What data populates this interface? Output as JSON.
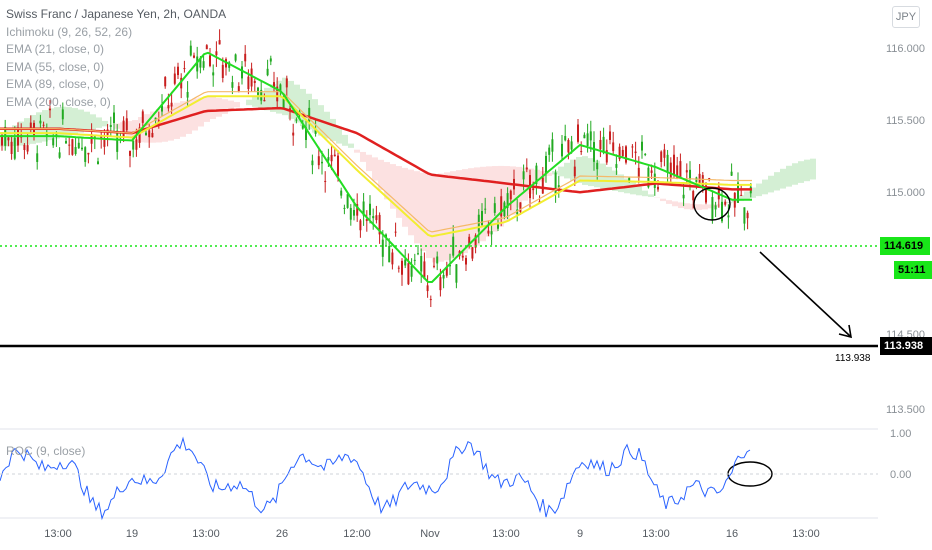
{
  "legend": {
    "title": "Swiss Franc / Japanese Yen, 2h, OANDA",
    "indicators": [
      "Ichimoku (9, 26, 52, 26)",
      "EMA (21, close, 0)",
      "EMA (55, close, 0)",
      "EMA (89, close, 0)",
      "EMA (200, close, 0)"
    ]
  },
  "roc_label": "ROC (9, close)",
  "currency_badge": "JPY",
  "price_axis_labels": [
    "116.000",
    "115.500",
    "115.000",
    "114.500",
    "113.500"
  ],
  "roc_axis_labels": [
    "1.00",
    "0.00"
  ],
  "time_axis_labels": [
    "13:00",
    "19",
    "13:00",
    "26",
    "12:00",
    "Nov",
    "13:00",
    "9",
    "13:00",
    "16",
    "13:00"
  ],
  "current_price_tag": "114.619",
  "countdown_tag": "51:11",
  "level_tag": "113.938",
  "level_label": "113.938",
  "colors": {
    "ema21": "#22dd22",
    "ema55": "#f2ee30",
    "ema89": "#f5b969",
    "ema200": "#e02020",
    "bull_candle": "#22aa22",
    "bear_candle": "#c81e1e",
    "cloud_bull": "#cdeccd",
    "cloud_bear": "#fbdcdc",
    "roc_line": "#2962ff",
    "current_price": "#19e619",
    "level_line": "#000000"
  },
  "chart_data": {
    "type": "line",
    "title": "Swiss Franc / Japanese Yen, 2h, OANDA",
    "y_axis": {
      "range": [
        113.3,
        116.2
      ]
    },
    "x_categories": [
      "13:00",
      "19",
      "13:00",
      "26",
      "12:00",
      "Nov",
      "13:00",
      "9",
      "13:00",
      "16",
      "13:00"
    ],
    "series": [
      {
        "name": "EMA (21, close, 0)",
        "x": [
          "13:00",
          "19",
          "13:00",
          "26",
          "12:00",
          "Nov",
          "13:00",
          "9",
          "13:00",
          "16"
        ],
        "values": [
          115.28,
          115.25,
          115.85,
          115.58,
          114.8,
          114.28,
          114.8,
          115.22,
          115.07,
          114.85
        ]
      },
      {
        "name": "EMA (55, close, 0)",
        "x": [
          "13:00",
          "19",
          "13:00",
          "26",
          "12:00",
          "Nov",
          "13:00",
          "9",
          "13:00",
          "16"
        ],
        "values": [
          115.3,
          115.27,
          115.55,
          115.55,
          115.05,
          114.6,
          114.7,
          114.98,
          114.97,
          114.95
        ]
      },
      {
        "name": "EMA (200, close, 0)",
        "x": [
          "13:00",
          "19",
          "13:00",
          "26",
          "12:00",
          "Nov",
          "13:00",
          "9",
          "13:00",
          "16"
        ],
        "values": [
          115.33,
          115.3,
          115.45,
          115.47,
          115.3,
          115.02,
          114.96,
          114.9,
          114.96,
          114.92
        ]
      }
    ],
    "current_price": 114.619,
    "horizontal_level": 113.938,
    "roc": {
      "name": "ROC (9, close)",
      "range": [
        -1.0,
        1.2
      ]
    }
  }
}
